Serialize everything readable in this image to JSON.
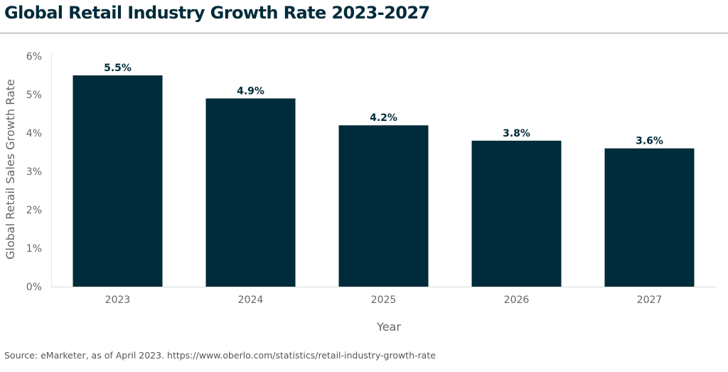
{
  "header": {
    "title": "Global Retail Industry Growth Rate 2023-2027"
  },
  "footer": {
    "source": "Source: eMarketer, as of April 2023. https://www.oberlo.com/statistics/retail-industry-growth-rate"
  },
  "colors": {
    "bar": "#002b3a",
    "title": "#002b3a",
    "axis_text": "#666666"
  },
  "chart_data": {
    "type": "bar",
    "title": "Global Retail Industry Growth Rate 2023-2027",
    "xlabel": "Year",
    "ylabel": "Global Retail Sales Growth Rate",
    "categories": [
      "2023",
      "2024",
      "2025",
      "2026",
      "2027"
    ],
    "values": [
      5.5,
      4.9,
      4.2,
      3.8,
      3.6
    ],
    "data_labels": [
      "5.5%",
      "4.9%",
      "4.2%",
      "3.8%",
      "3.6%"
    ],
    "ylim": [
      0,
      6
    ],
    "yticks": [
      0,
      1,
      2,
      3,
      4,
      5,
      6
    ],
    "ytick_labels": [
      "0%",
      "1%",
      "2%",
      "3%",
      "4%",
      "5%",
      "6%"
    ],
    "grid": false,
    "legend": "none"
  }
}
